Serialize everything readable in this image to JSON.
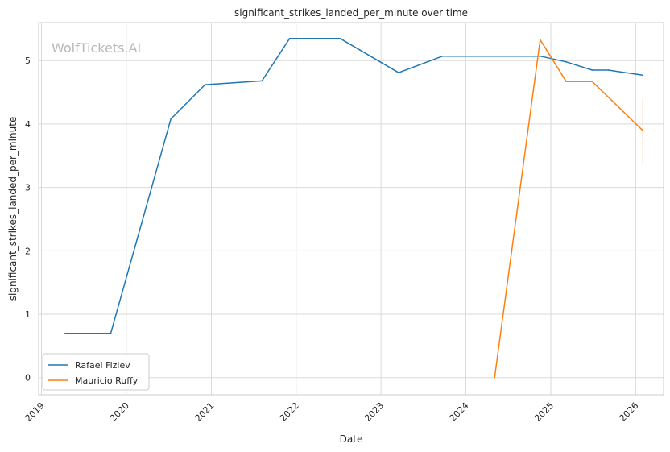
{
  "chart_data": {
    "type": "line",
    "title": "significant_strikes_landed_per_minute over time",
    "xlabel": "Date",
    "ylabel": "significant_strikes_landed_per_minute",
    "watermark": "WolfTickets.AI",
    "x_ticks": [
      "2019",
      "2020",
      "2021",
      "2022",
      "2023",
      "2024",
      "2025",
      "2026"
    ],
    "y_ticks": [
      0,
      1,
      2,
      3,
      4,
      5
    ],
    "xlim": [
      "2018-12-20",
      "2026-05-01"
    ],
    "ylim": [
      -0.27,
      5.6
    ],
    "grid": true,
    "legend_position": "lower-left",
    "series": [
      {
        "name": "Rafael Fiziev",
        "color": "#1f77b4",
        "points": [
          {
            "x": "2019-04-13",
            "y": 0.7
          },
          {
            "x": "2019-10-26",
            "y": 0.7
          },
          {
            "x": "2020-07-11",
            "y": 4.08
          },
          {
            "x": "2020-12-05",
            "y": 4.62
          },
          {
            "x": "2021-08-07",
            "y": 4.68
          },
          {
            "x": "2021-12-04",
            "y": 5.35
          },
          {
            "x": "2022-07-09",
            "y": 5.35
          },
          {
            "x": "2023-03-18",
            "y": 4.81
          },
          {
            "x": "2023-09-23",
            "y": 5.07
          },
          {
            "x": "2024-11-16",
            "y": 5.07
          },
          {
            "x": "2025-03-08",
            "y": 4.98
          },
          {
            "x": "2025-06-28",
            "y": 4.85
          },
          {
            "x": "2025-09-06",
            "y": 4.85
          },
          {
            "x": "2026-01-31",
            "y": 4.77
          }
        ]
      },
      {
        "name": "Mauricio Ruffy",
        "color": "#ff7f0e",
        "points": [
          {
            "x": "2024-05-04",
            "y": 0.0
          },
          {
            "x": "2024-11-16",
            "y": 5.33
          },
          {
            "x": "2025-03-08",
            "y": 4.67
          },
          {
            "x": "2025-06-28",
            "y": 4.67
          },
          {
            "x": "2026-01-31",
            "y": 3.9
          }
        ]
      }
    ],
    "error_band": {
      "x": "2026-01-31",
      "y_low": 3.38,
      "y_high": 4.4,
      "color": "#ff7f0e"
    }
  }
}
